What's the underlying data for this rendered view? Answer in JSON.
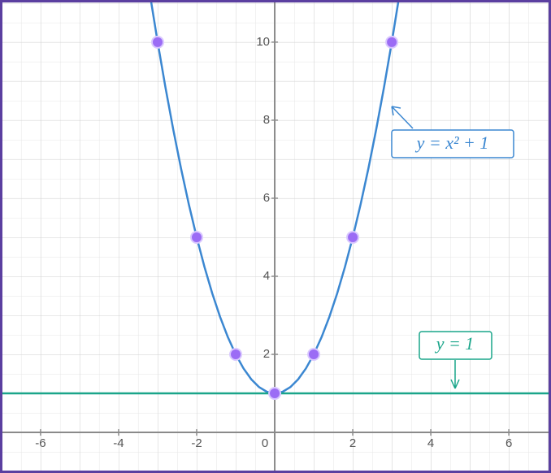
{
  "chart_data": {
    "type": "line",
    "xlim": [
      -7.04,
      7.08
    ],
    "ylim": [
      -1.04,
      11.08
    ],
    "xticks": [
      -6,
      -4,
      -2,
      0,
      2,
      4,
      6
    ],
    "yticks": [
      2,
      4,
      6,
      8,
      10
    ],
    "grid": true,
    "series": [
      {
        "name": "y = x² + 1",
        "color": "#3b87d1",
        "style": "curve",
        "x": [
          -3.2,
          -3.0,
          -2.8,
          -2.6,
          -2.4,
          -2.2,
          -2.0,
          -1.8,
          -1.6,
          -1.4,
          -1.2,
          -1.0,
          -0.8,
          -0.6,
          -0.4,
          -0.2,
          0,
          0.2,
          0.4,
          0.6,
          0.8,
          1.0,
          1.2,
          1.4,
          1.6,
          1.8,
          2.0,
          2.2,
          2.4,
          2.6,
          2.8,
          3.0,
          3.2
        ],
        "values": [
          11.24,
          10,
          8.84,
          7.76,
          6.76,
          5.84,
          5,
          4.24,
          3.56,
          2.96,
          2.44,
          2,
          1.64,
          1.36,
          1.16,
          1.04,
          1,
          1.04,
          1.16,
          1.36,
          1.64,
          2,
          2.44,
          2.96,
          3.56,
          4.24,
          5,
          5.84,
          6.76,
          7.76,
          8.84,
          10,
          11.24
        ]
      },
      {
        "name": "y = 1",
        "color": "#1aa58a",
        "style": "curve",
        "x": [
          -7.04,
          7.08
        ],
        "values": [
          1,
          1
        ]
      },
      {
        "color": "#9b6cf5",
        "style": "points",
        "x": [
          -3,
          -2,
          -1,
          0,
          1,
          2,
          3
        ],
        "values": [
          10,
          5,
          2,
          1,
          2,
          5,
          10
        ]
      }
    ]
  }
}
